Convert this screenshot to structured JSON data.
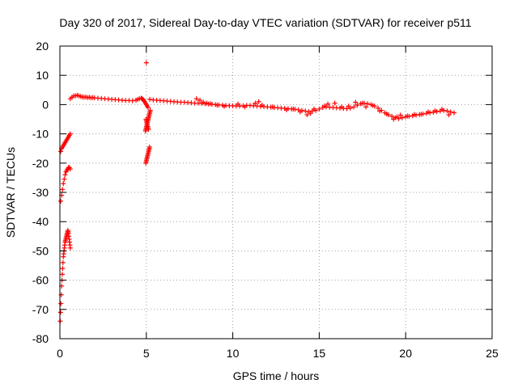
{
  "chart_data": {
    "type": "scatter",
    "title": "Day 320 of 2017, Sidereal Day-to-day VTEC variation (SDTVAR) for receiver p511",
    "xlabel": "GPS time / hours",
    "ylabel": "SDTVAR / TECUs",
    "xlim": [
      0,
      25
    ],
    "ylim": [
      -80,
      20
    ],
    "xticks": [
      0,
      5,
      10,
      15,
      20,
      25
    ],
    "yticks": [
      -80,
      -70,
      -60,
      -50,
      -40,
      -30,
      -20,
      -10,
      0,
      10,
      20
    ],
    "grid": true,
    "marker": "+",
    "color": "#ff0000",
    "series": [
      {
        "name": "p511",
        "x": [
          0.02,
          0.04,
          0.06,
          0.08,
          0.1,
          0.12,
          0.14,
          0.16,
          0.18,
          0.2,
          0.22,
          0.24,
          0.26,
          0.28,
          0.3,
          0.32,
          0.34,
          0.36,
          0.38,
          0.4,
          0.42,
          0.44,
          0.46,
          0.48,
          0.5,
          0.52,
          0.54,
          0.56,
          0.58,
          0.6,
          0.05,
          0.1,
          0.15,
          0.2,
          0.25,
          0.3,
          0.35,
          0.4,
          0.45,
          0.5,
          0.55,
          0.6,
          0.05,
          0.1,
          0.15,
          0.2,
          0.25,
          0.3,
          0.35,
          0.4,
          0.45,
          0.5,
          0.55,
          0.6,
          0.6,
          0.7,
          0.8,
          0.9,
          1.0,
          1.1,
          1.2,
          1.3,
          1.4,
          1.5,
          1.6,
          1.7,
          1.8,
          1.9,
          2.0,
          2.2,
          2.4,
          2.6,
          2.8,
          3.0,
          3.2,
          3.4,
          3.6,
          3.8,
          4.0,
          4.2,
          4.4,
          4.5,
          4.6,
          4.7,
          4.75,
          4.8,
          4.85,
          4.9,
          4.95,
          5.0,
          5.05,
          5.1,
          4.95,
          4.97,
          4.99,
          5.01,
          5.03,
          5.05,
          5.07,
          5.09,
          5.11,
          5.13,
          5.15,
          5.17,
          5.19,
          5.21,
          5.23,
          4.98,
          5.0,
          5.02,
          5.04,
          5.06,
          5.08,
          5.1,
          5.12,
          4.97,
          4.99,
          5.01,
          5.03,
          5.05,
          5.07,
          5.09,
          5.11,
          5.13,
          5.15,
          5.17,
          5.19,
          5.0,
          5.2,
          5.4,
          5.6,
          5.8,
          6.0,
          6.2,
          6.4,
          6.6,
          6.8,
          7.0,
          7.2,
          7.4,
          7.6,
          7.8,
          8.0,
          8.2,
          8.4,
          8.6,
          8.8,
          9.0,
          9.2,
          9.4,
          9.6,
          9.8,
          10.0,
          10.2,
          10.4,
          10.6,
          10.8,
          11.0,
          11.2,
          11.4,
          11.6,
          11.8,
          12.0,
          12.2,
          12.4,
          12.6,
          12.8,
          13.0,
          13.2,
          13.4,
          13.6,
          13.8,
          14.0,
          14.2,
          14.4,
          14.6,
          14.8,
          15.0,
          15.2,
          15.4,
          15.6,
          15.8,
          16.0,
          16.2,
          16.4,
          16.6,
          16.8,
          17.0,
          17.2,
          17.4,
          17.6,
          17.8,
          18.0,
          18.2,
          18.4,
          18.6,
          18.8,
          19.0,
          19.2,
          19.4,
          19.6,
          19.8,
          20.0,
          20.2,
          20.4,
          20.6,
          20.8,
          21.0,
          21.2,
          21.4,
          21.6,
          21.8,
          22.0,
          22.2,
          22.4,
          22.6,
          22.8,
          7.9,
          8.1,
          8.3,
          8.5,
          8.7,
          9.1,
          9.5,
          10.3,
          10.7,
          11.3,
          11.5,
          11.7,
          12.3,
          13.1,
          13.5,
          13.9,
          14.3,
          14.5,
          14.7,
          15.3,
          15.5,
          15.9,
          16.3,
          16.7,
          17.1,
          17.5,
          17.7,
          18.1,
          18.5,
          18.9,
          19.3,
          19.5,
          19.7,
          20.1,
          20.5,
          20.9,
          21.3,
          21.7,
          22.1,
          22.5
        ],
        "y": [
          -74,
          -71,
          -68,
          -65,
          -62,
          -60,
          -58,
          -56,
          -54,
          -52,
          -51,
          -50,
          -49,
          -48,
          -47,
          -46.5,
          -46,
          -45.5,
          -45,
          -44.5,
          -44,
          -43.5,
          -43,
          -43.5,
          -44,
          -45,
          -46,
          -47,
          -48,
          -49,
          -33,
          -31,
          -29,
          -27,
          -25.5,
          -24,
          -23,
          -22.5,
          -22,
          -21.5,
          -21.5,
          -22,
          -16,
          -15,
          -14.5,
          -14,
          -13.5,
          -13,
          -12.5,
          -12,
          -11.5,
          -11,
          -10.5,
          -10,
          2.0,
          2.5,
          3.0,
          3.0,
          3.2,
          3.0,
          2.8,
          2.6,
          2.5,
          2.6,
          2.4,
          2.5,
          2.3,
          2.4,
          2.3,
          2.2,
          2.1,
          2.0,
          1.9,
          1.8,
          1.7,
          1.6,
          1.5,
          1.4,
          1.4,
          1.3,
          1.5,
          1.8,
          2.0,
          2.2,
          2.0,
          1.8,
          1.5,
          1.0,
          0.5,
          0.0,
          -0.5,
          -1.0,
          -9,
          -8.5,
          -8,
          -7.5,
          -7,
          -6.5,
          -6,
          -5.5,
          -5,
          -4.5,
          -4,
          -3.5,
          -3,
          -2.5,
          -2,
          -5,
          -5.5,
          -6,
          -6.5,
          -7,
          -7.5,
          -8,
          -8.5,
          -20,
          -19.5,
          -19,
          -18.5,
          -18,
          -17.5,
          -17,
          -16.5,
          -16,
          -15.5,
          -15,
          -14.5,
          14.3,
          1.8,
          1.6,
          1.5,
          1.4,
          1.3,
          1.2,
          1.1,
          1.0,
          0.9,
          0.8,
          0.8,
          0.7,
          0.6,
          0.5,
          0.5,
          0.4,
          0.3,
          0.2,
          0.1,
          0.0,
          -0.1,
          -0.2,
          -0.3,
          -0.4,
          -0.4,
          -0.5,
          -0.5,
          -0.4,
          -0.3,
          -0.3,
          -0.4,
          -0.5,
          -0.6,
          -0.7,
          -0.8,
          -0.9,
          -1.0,
          -1.1,
          -1.2,
          -1.3,
          -1.4,
          -1.5,
          -1.6,
          -1.8,
          -2.0,
          -2.2,
          -2.4,
          -2.2,
          -2.0,
          -1.5,
          -1.0,
          -0.8,
          -0.9,
          -1.0,
          -1.1,
          -1.2,
          -1.3,
          -1.4,
          -1.2,
          -0.8,
          -0.2,
          0.3,
          0.5,
          0.3,
          0.0,
          -0.5,
          -1.2,
          -2.0,
          -2.8,
          -3.5,
          -4.0,
          -4.5,
          -4.8,
          -4.5,
          -4.2,
          -4.0,
          -3.8,
          -3.6,
          -3.4,
          -3.2,
          -3.0,
          -2.8,
          -2.6,
          -2.4,
          -2.2,
          -2.0,
          -2.2,
          -2.5,
          -2.8,
          2.0,
          1.5,
          0.8,
          0.5,
          0.3,
          -0.2,
          -0.6,
          0.2,
          -0.8,
          0.5,
          1.0,
          -0.2,
          -0.8,
          -1.8,
          -1.5,
          -2.5,
          -3.5,
          -3.0,
          -1.5,
          -0.5,
          0.2,
          0.5,
          -0.8,
          -0.5,
          0.8,
          0.5,
          -0.8,
          -0.3,
          -2.2,
          -3.2,
          -5.0,
          -4.2,
          -3.6,
          -3.9,
          -3.4,
          -3.3,
          -2.5,
          -2.1,
          -1.6,
          -3.5
        ]
      }
    ]
  }
}
